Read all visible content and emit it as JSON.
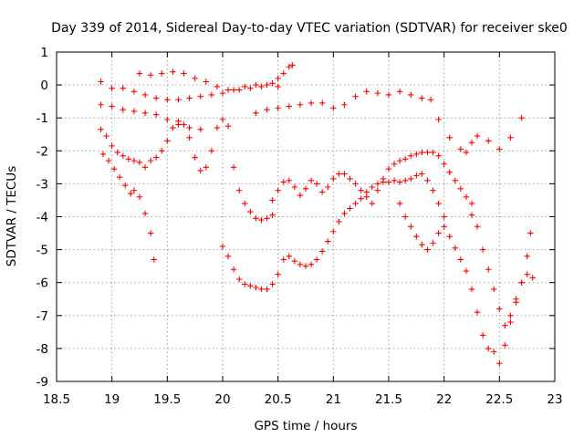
{
  "chart_data": {
    "type": "scatter",
    "title": "Day 339 of 2014, Sidereal Day-to-day VTEC variation (SDTVAR) for receiver ske0",
    "xlabel": "GPS time / hours",
    "ylabel": "SDTVAR / TECUs",
    "xlim": [
      18.5,
      23
    ],
    "ylim": [
      -9,
      1
    ],
    "xticks": [
      "18.5",
      "19",
      "19.5",
      "20",
      "20.5",
      "21",
      "21.5",
      "22",
      "22.5",
      "23"
    ],
    "yticks": [
      "1",
      "0",
      "-1",
      "-2",
      "-3",
      "-4",
      "-5",
      "-6",
      "-7",
      "-8",
      "-9"
    ],
    "grid": true,
    "marker": "+",
    "marker_color": "#ff0000",
    "series": [
      {
        "name": "track-1",
        "x": [
          18.9,
          19.0,
          19.1,
          19.2,
          19.3,
          19.4,
          19.5,
          19.6,
          19.7,
          19.8,
          19.9,
          20.0,
          20.1,
          20.2,
          20.3,
          20.4,
          20.5
        ],
        "y": [
          0.1,
          -0.1,
          -0.1,
          -0.2,
          -0.3,
          -0.4,
          -0.45,
          -0.45,
          -0.4,
          -0.35,
          -0.3,
          -0.25,
          -0.15,
          -0.05,
          0.0,
          0.0,
          -0.05
        ]
      },
      {
        "name": "track-2",
        "x": [
          19.25,
          19.35,
          19.45,
          19.55,
          19.65,
          19.75,
          19.85,
          19.95,
          20.05,
          20.15,
          20.25,
          20.35,
          20.45,
          20.5,
          20.55,
          20.6,
          20.63
        ],
        "y": [
          0.35,
          0.3,
          0.35,
          0.4,
          0.35,
          0.2,
          0.1,
          -0.05,
          -0.15,
          -0.15,
          -0.1,
          -0.05,
          0.05,
          0.2,
          0.35,
          0.55,
          0.6
        ]
      },
      {
        "name": "track-3",
        "x": [
          18.9,
          19.0,
          19.1,
          19.2,
          19.3,
          19.4,
          19.5,
          19.6,
          19.7,
          19.8
        ],
        "y": [
          -0.6,
          -0.65,
          -0.75,
          -0.8,
          -0.85,
          -0.9,
          -1.05,
          -1.2,
          -1.3,
          -1.35
        ]
      },
      {
        "name": "track-4",
        "x": [
          20.3,
          20.4,
          20.5,
          20.6,
          20.7,
          20.8,
          20.9,
          21.0,
          21.1,
          21.2,
          21.3,
          21.4,
          21.5,
          21.6,
          21.7,
          21.8
        ],
        "y": [
          -0.85,
          -0.75,
          -0.7,
          -0.65,
          -0.6,
          -0.55,
          -0.55,
          -0.7,
          -0.6,
          -0.35,
          -0.2,
          -0.25,
          -0.3,
          -0.2,
          -0.3,
          -0.4
        ]
      },
      {
        "name": "track-5",
        "x": [
          21.88,
          21.95,
          22.05,
          22.15,
          22.2,
          22.25,
          22.3,
          22.4,
          22.5,
          22.6,
          22.7
        ],
        "y": [
          -0.45,
          -1.05,
          -1.6,
          -1.95,
          -2.05,
          -1.75,
          -1.55,
          -1.7,
          -1.95,
          -1.6,
          -1.0
        ]
      },
      {
        "name": "track-6",
        "x": [
          18.9,
          18.95,
          19.0,
          19.05,
          19.1,
          19.15,
          19.2,
          19.25,
          19.3,
          19.35,
          19.4
        ],
        "y": [
          -1.35,
          -1.55,
          -1.85,
          -2.05,
          -2.15,
          -2.25,
          -2.3,
          -2.35,
          -2.5,
          -2.3,
          -2.2
        ]
      },
      {
        "name": "track-7",
        "x": [
          18.92,
          18.97,
          19.02,
          19.07,
          19.12,
          19.17,
          19.2,
          19.25,
          19.3,
          19.35,
          19.38
        ],
        "y": [
          -2.1,
          -2.3,
          -2.55,
          -2.8,
          -3.05,
          -3.3,
          -3.2,
          -3.4,
          -3.9,
          -4.5,
          -5.3
        ]
      },
      {
        "name": "track-8",
        "x": [
          19.45,
          19.5,
          19.55,
          19.6,
          19.65,
          19.7,
          19.75,
          19.8,
          19.85,
          19.9,
          19.95,
          20.0,
          20.05,
          20.1,
          20.15,
          20.2,
          20.25,
          20.3,
          20.35,
          20.4,
          20.45
        ],
        "y": [
          -2.0,
          -1.7,
          -1.3,
          -1.1,
          -1.2,
          -1.6,
          -2.2,
          -2.6,
          -2.5,
          -2.0,
          -1.3,
          -1.05,
          -1.25,
          -2.5,
          -3.2,
          -3.6,
          -3.85,
          -4.05,
          -4.1,
          -4.05,
          -3.95
        ]
      },
      {
        "name": "track-9",
        "x": [
          20.45,
          20.5,
          20.55,
          20.6,
          20.65,
          20.7,
          20.75,
          20.8,
          20.85,
          20.9,
          20.95,
          21.0,
          21.05,
          21.1,
          21.15,
          21.2,
          21.25,
          21.3,
          21.35,
          21.4,
          21.45,
          21.5,
          21.55,
          21.6,
          21.65,
          21.7,
          21.75,
          21.8,
          21.85,
          21.9,
          21.95,
          22.0,
          22.05,
          22.1,
          22.15,
          22.2,
          22.25
        ],
        "y": [
          -3.5,
          -3.2,
          -2.95,
          -2.9,
          -3.1,
          -3.35,
          -3.15,
          -2.9,
          -3.0,
          -3.25,
          -3.1,
          -2.85,
          -2.7,
          -2.7,
          -2.85,
          -3.0,
          -3.2,
          -3.4,
          -3.6,
          -3.2,
          -2.85,
          -2.55,
          -2.4,
          -2.3,
          -2.25,
          -2.15,
          -2.1,
          -2.05,
          -2.05,
          -2.05,
          -2.15,
          -2.4,
          -2.65,
          -2.9,
          -3.15,
          -3.4,
          -3.6
        ]
      },
      {
        "name": "track-10",
        "x": [
          20.0,
          20.05,
          20.1,
          20.15,
          20.2,
          20.25,
          20.3,
          20.35,
          20.4,
          20.45,
          20.5,
          20.55,
          20.6,
          20.65,
          20.7,
          20.75,
          20.8,
          20.85,
          20.9,
          20.95,
          21.0,
          21.05,
          21.1,
          21.15,
          21.2,
          21.25,
          21.3,
          21.35,
          21.4,
          21.45,
          21.5,
          21.55,
          21.6,
          21.65,
          21.7,
          21.75,
          21.8,
          21.85,
          21.9,
          21.95,
          22.0
        ],
        "y": [
          -4.9,
          -5.2,
          -5.6,
          -5.9,
          -6.05,
          -6.1,
          -6.15,
          -6.2,
          -6.2,
          -6.05,
          -5.75,
          -5.3,
          -5.2,
          -5.35,
          -5.45,
          -5.5,
          -5.45,
          -5.3,
          -5.05,
          -4.75,
          -4.45,
          -4.15,
          -3.9,
          -3.75,
          -3.6,
          -3.45,
          -3.25,
          -3.1,
          -3.0,
          -2.95,
          -2.95,
          -2.9,
          -2.95,
          -2.9,
          -2.85,
          -2.75,
          -2.7,
          -2.9,
          -3.2,
          -3.6,
          -4.0
        ]
      },
      {
        "name": "track-11",
        "x": [
          21.6,
          21.65,
          21.7,
          21.75,
          21.8,
          21.85,
          21.9,
          21.95,
          22.0,
          22.05,
          22.1,
          22.15,
          22.2,
          22.25,
          22.3,
          22.35,
          22.4,
          22.45,
          22.5,
          22.55,
          22.6,
          22.65,
          22.7,
          22.75,
          22.8
        ],
        "y": [
          -3.6,
          -4.0,
          -4.3,
          -4.6,
          -4.85,
          -5.0,
          -4.8,
          -4.5,
          -4.3,
          -4.6,
          -4.95,
          -5.3,
          -5.65,
          -6.2,
          -6.9,
          -7.6,
          -8.0,
          -8.1,
          -8.45,
          -7.9,
          -7.2,
          -6.5,
          -6.0,
          -5.75,
          -5.85
        ]
      },
      {
        "name": "track-12",
        "x": [
          22.25,
          22.3,
          22.35,
          22.4,
          22.45,
          22.5,
          22.55,
          22.6,
          22.65,
          22.7,
          22.75,
          22.78
        ],
        "y": [
          -3.95,
          -4.3,
          -5.0,
          -5.6,
          -6.2,
          -6.8,
          -7.3,
          -7.0,
          -6.6,
          -6.0,
          -5.2,
          -4.5
        ]
      }
    ]
  }
}
